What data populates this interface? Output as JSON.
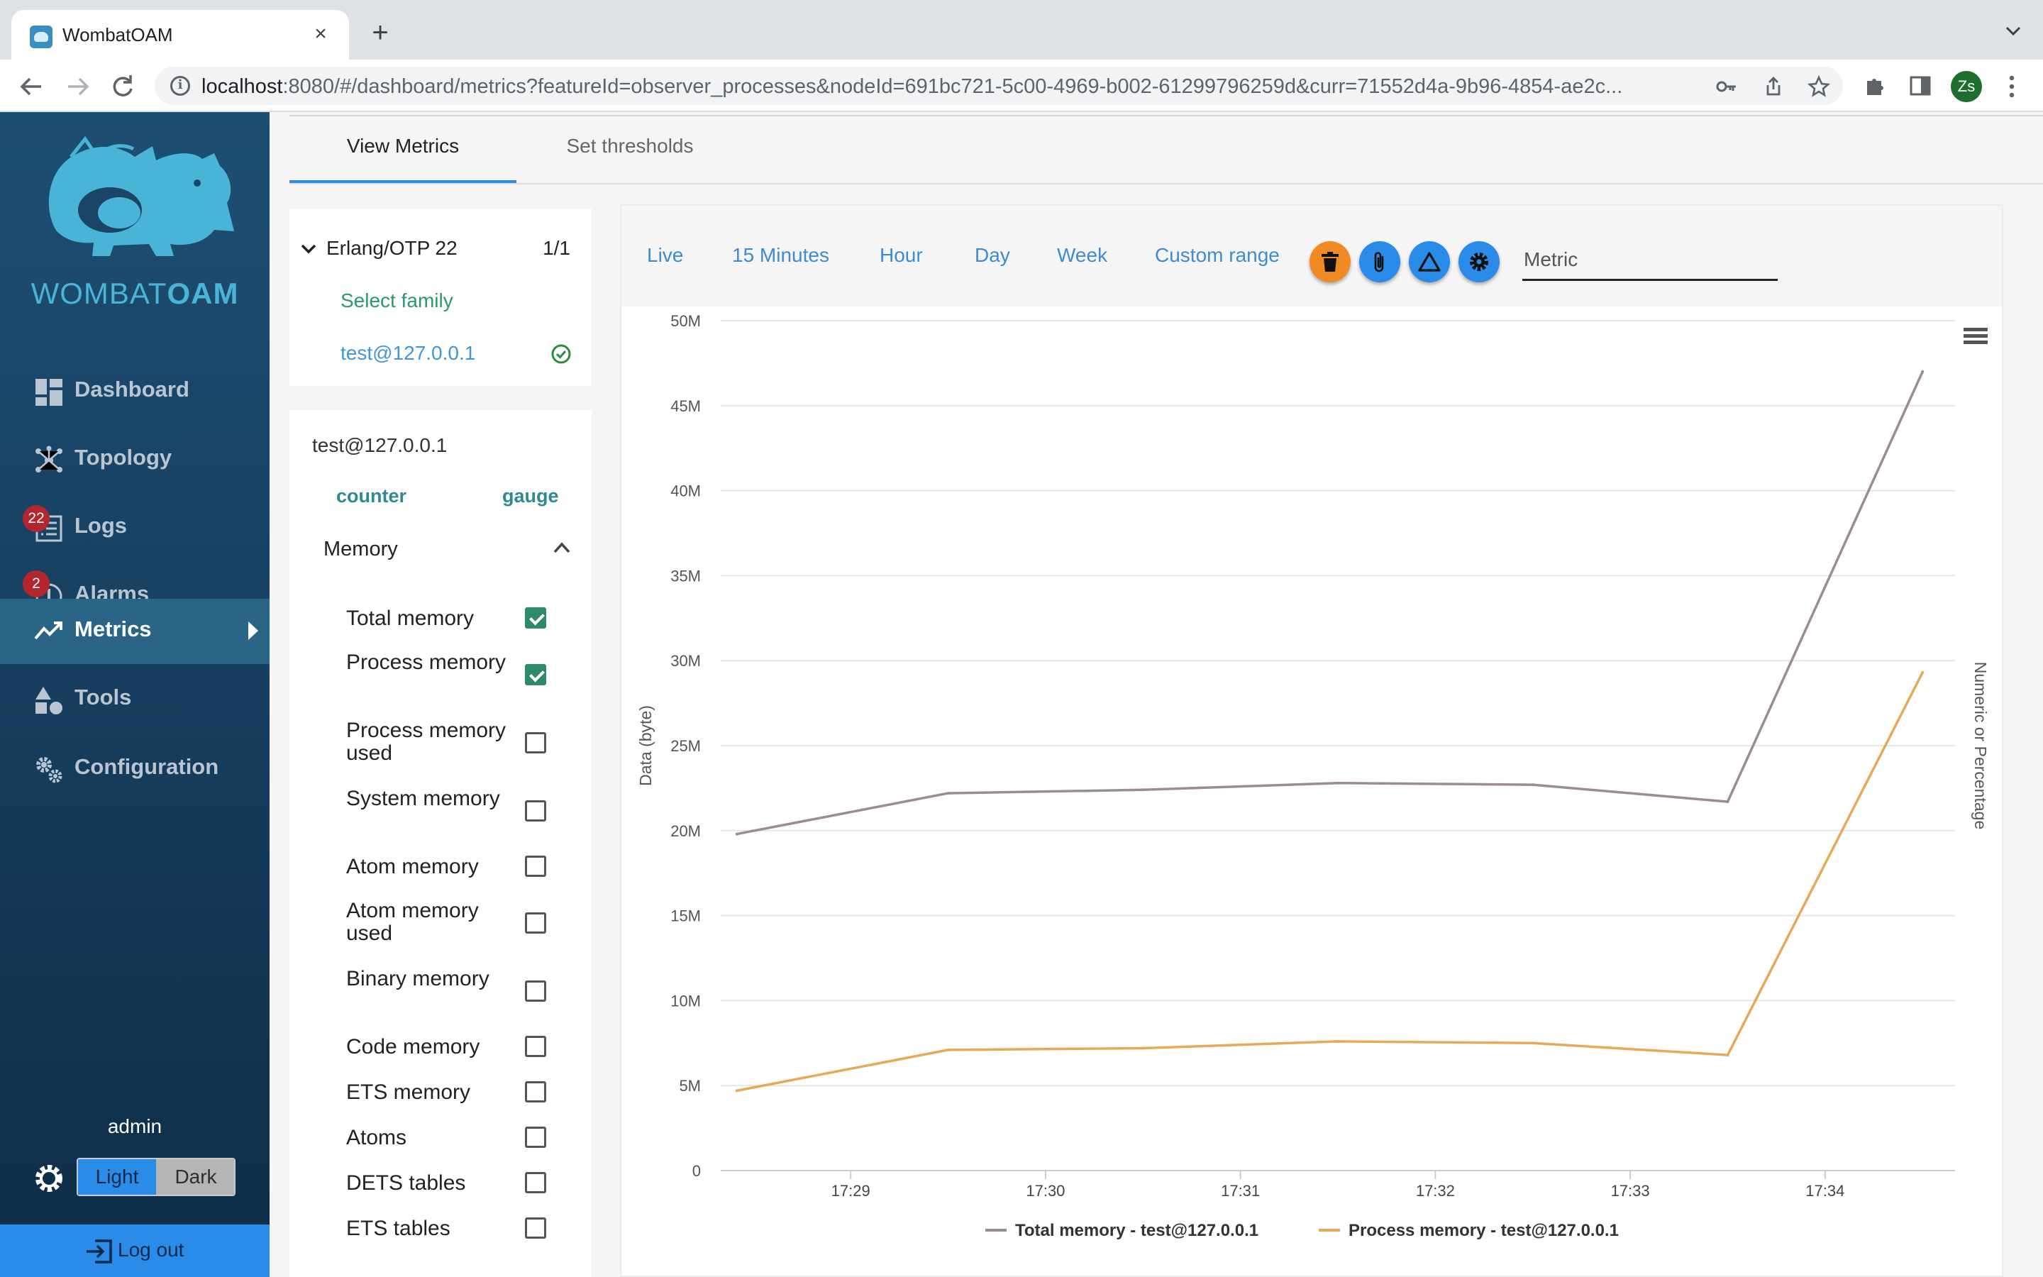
{
  "browser": {
    "tab_title": "WombatOAM",
    "url_host": "localhost",
    "url_rest": ":8080/#/dashboard/metrics?featureId=observer_processes&nodeId=691bc721-5c00-4969-b002-61299796259d&curr=71552d4a-9b96-4854-ae2c...",
    "profile_initials": "Zs"
  },
  "sidebar": {
    "logo_text_light": "WOMBAT",
    "logo_text_bold": "OAM",
    "items": [
      {
        "label": "Dashboard",
        "icon": "dashboard-icon"
      },
      {
        "label": "Topology",
        "icon": "topology-icon"
      },
      {
        "label": "Logs",
        "icon": "logs-icon",
        "badge": "22"
      },
      {
        "label": "Alarms",
        "icon": "alarm-icon",
        "badge": "2"
      },
      {
        "label": "Metrics",
        "icon": "metrics-icon",
        "active": true
      },
      {
        "label": "Tools",
        "icon": "tools-icon"
      },
      {
        "label": "Configuration",
        "icon": "configuration-icon"
      }
    ],
    "user": "admin",
    "theme_light": "Light",
    "theme_dark": "Dark",
    "logout": "Log out"
  },
  "tabs": {
    "view_metrics": "View Metrics",
    "set_thresholds": "Set thresholds"
  },
  "family_panel": {
    "family_name": "Erlang/OTP 22",
    "count": "1/1",
    "select_family": "Select family",
    "node": "test@127.0.0.1"
  },
  "node_panel": {
    "node": "test@127.0.0.1",
    "counter": "counter",
    "gauge": "gauge"
  },
  "memory_panel": {
    "title": "Memory",
    "metrics": [
      {
        "label": "Total memory",
        "checked": true
      },
      {
        "label": "Process memory",
        "checked": true
      },
      {
        "label": "Process memory used",
        "checked": false
      },
      {
        "label": "System memory",
        "checked": false
      },
      {
        "label": "Atom memory",
        "checked": false
      },
      {
        "label": "Atom memory used",
        "checked": false
      },
      {
        "label": "Binary memory",
        "checked": false
      },
      {
        "label": "Code memory",
        "checked": false
      },
      {
        "label": "ETS memory",
        "checked": false
      },
      {
        "label": "Atoms",
        "checked": false
      },
      {
        "label": "DETS tables",
        "checked": false
      },
      {
        "label": "ETS tables",
        "checked": false
      }
    ]
  },
  "chart_toolbar": {
    "ranges": [
      "Live",
      "15 Minutes",
      "Hour",
      "Day",
      "Week",
      "Custom range"
    ],
    "metric_placeholder": "Metric",
    "buttons": [
      {
        "icon": "trash-icon",
        "color": "#f08a24"
      },
      {
        "icon": "paperclip-icon",
        "color": "#2b8be8"
      },
      {
        "icon": "warning-triangle-icon",
        "color": "#2b8be8"
      },
      {
        "icon": "gear-icon",
        "color": "#2b8be8"
      }
    ]
  },
  "chart_data": {
    "type": "line",
    "xlabel": "",
    "ylabel": "Data (byte)",
    "y2label": "Numeric or Percentage",
    "ylim": [
      0,
      50000000
    ],
    "y_ticks": [
      "0",
      "5M",
      "10M",
      "15M",
      "20M",
      "25M",
      "30M",
      "35M",
      "40M",
      "45M",
      "50M"
    ],
    "x_ticks": [
      "17:29",
      "17:30",
      "17:31",
      "17:32",
      "17:33",
      "17:34"
    ],
    "x_range": [
      "17:28:20",
      "17:34:40"
    ],
    "grid": true,
    "legend_position": "bottom",
    "x": [
      "17:28:25",
      "17:29:30",
      "17:30:30",
      "17:31:30",
      "17:32:30",
      "17:33:30",
      "17:34:30"
    ],
    "series": [
      {
        "name": "Total memory - test@127.0.0.1",
        "color": "#9c8a96",
        "values": [
          19800000,
          22200000,
          22400000,
          22800000,
          22700000,
          21700000,
          47000000
        ]
      },
      {
        "name": "Process memory - test@127.0.0.1",
        "color": "#e8a85a",
        "values": [
          4700000,
          7100000,
          7200000,
          7600000,
          7500000,
          6800000,
          29300000
        ]
      }
    ]
  }
}
